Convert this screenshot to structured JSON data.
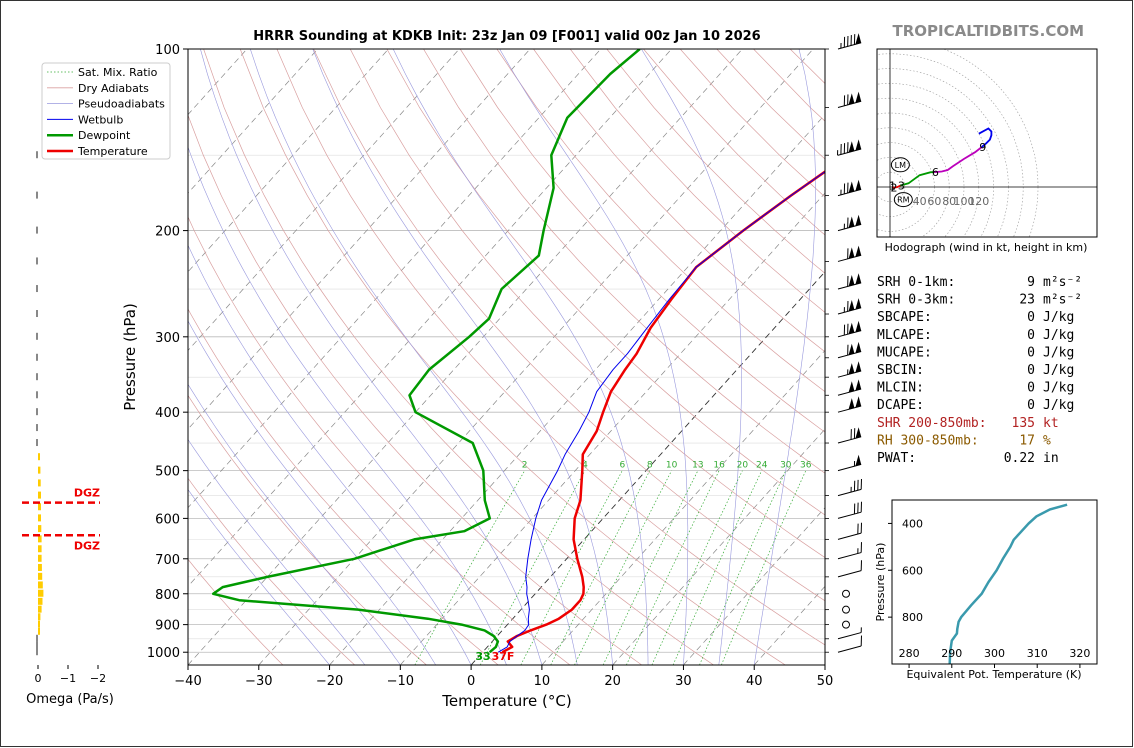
{
  "brand": "TROPICALTIDBITS.COM",
  "chart_data": [
    {
      "type": "line",
      "name": "skew-t",
      "title": "HRRR Sounding at KDKB Init: 23z Jan 09 [F001] valid 00z Jan 10 2026",
      "xlabel": "Temperature (°C)",
      "ylabel": "Pressure (hPa)",
      "xlim": [
        -40,
        50
      ],
      "ylim": [
        1050,
        100
      ],
      "y_scale": "log",
      "x_ticks": [
        -40,
        -30,
        -20,
        -10,
        0,
        10,
        20,
        30,
        40,
        50
      ],
      "y_ticks": [
        100,
        200,
        300,
        400,
        500,
        600,
        700,
        800,
        900,
        1000
      ],
      "legend": [
        "Sat. Mix. Ratio",
        "Dry Adiabats",
        "Pseudoadiabats",
        "Wetbulb",
        "Dewpoint",
        "Temperature"
      ],
      "legend_position": "top-left",
      "mixing_ratio_labels": [
        "2",
        "4",
        "6",
        "8",
        "10",
        "13",
        "16",
        "20",
        "24",
        "30",
        "36"
      ],
      "surface_dewpoint_label": "33",
      "surface_temp_label": "37F",
      "series": [
        {
          "name": "Temperature",
          "color": "#ee0000",
          "p": [
            1000,
            980,
            960,
            940,
            920,
            900,
            880,
            850,
            820,
            800,
            780,
            750,
            700,
            650,
            600,
            560,
            500,
            470,
            430,
            400,
            370,
            340,
            320,
            290,
            260,
            230,
            200,
            175,
            150,
            130,
            115,
            100
          ],
          "t": [
            2.8,
            3.5,
            2.2,
            2.8,
            4.0,
            5.5,
            6.5,
            7.2,
            7.2,
            6.8,
            6.0,
            4.5,
            1.5,
            -1.5,
            -4.0,
            -5.5,
            -9.0,
            -11.0,
            -12.0,
            -13.5,
            -15.0,
            -15.8,
            -16.2,
            -17.5,
            -18.2,
            -18.8,
            -16.8,
            -14.5,
            -11.5,
            -11.5,
            -11.0,
            -10.0
          ]
        },
        {
          "name": "Wetbulb",
          "color": "#0000ee",
          "p": [
            1000,
            980,
            960,
            940,
            920,
            900,
            880,
            850,
            820,
            800,
            780,
            750,
            700,
            650,
            600,
            560,
            500,
            470,
            430,
            400,
            370,
            340,
            320,
            290,
            260,
            230,
            200,
            175,
            150,
            130,
            115,
            100
          ],
          "t": [
            2.2,
            2.8,
            2.5,
            2.8,
            3.2,
            3.0,
            2.2,
            1.2,
            -0.2,
            -1.2,
            -2.0,
            -3.5,
            -5.5,
            -7.5,
            -9.5,
            -11.0,
            -12.5,
            -13.5,
            -14.5,
            -15.5,
            -17.0,
            -17.5,
            -17.5,
            -18.0,
            -18.5,
            -18.8,
            -16.8,
            -14.5,
            -11.5,
            -11.2,
            -11.2,
            -10.0
          ]
        },
        {
          "name": "Dewpoint",
          "color": "#009900",
          "p": [
            1000,
            980,
            960,
            940,
            920,
            900,
            880,
            850,
            820,
            800,
            780,
            750,
            700,
            650,
            630,
            600,
            560,
            500,
            450,
            400,
            375,
            340,
            300,
            280,
            250,
            220,
            200,
            170,
            150,
            130,
            110,
            100
          ],
          "t": [
            1.0,
            1.2,
            0.8,
            -0.5,
            -2.5,
            -6.5,
            -12.0,
            -23.0,
            -41.0,
            -45.5,
            -45.0,
            -40.0,
            -30.0,
            -24.0,
            -18.0,
            -16.0,
            -19.0,
            -23.0,
            -28.0,
            -40.0,
            -43.0,
            -43.5,
            -42.0,
            -41.5,
            -43.5,
            -42.5,
            -45.0,
            -49.0,
            -53.5,
            -56.0,
            -55.5,
            -54.5
          ]
        }
      ]
    },
    {
      "type": "line",
      "name": "hodograph",
      "xlabel": "Hodograph (wind in kt, height in km)",
      "x_ticks": [
        40,
        60,
        80,
        100,
        120
      ],
      "point_labels": [
        "1",
        "2",
        "3",
        "6",
        "9"
      ],
      "markers": [
        "LM",
        "RM"
      ],
      "series": [
        {
          "name": "0-3km",
          "color": "#ee0000",
          "u": [
            3,
            6,
            10,
            14
          ],
          "v": [
            0,
            -1,
            0,
            2
          ]
        },
        {
          "name": "3-6km",
          "color": "#009900",
          "u": [
            14,
            25,
            40,
            55,
            60
          ],
          "v": [
            2,
            5,
            16,
            20,
            20
          ]
        },
        {
          "name": "6-9km",
          "color": "#bb00bb",
          "u": [
            60,
            70,
            78,
            85,
            100,
            115,
            124
          ],
          "v": [
            20,
            21,
            23,
            28,
            38,
            47,
            54
          ]
        },
        {
          "name": "9km+",
          "color": "#0000ee",
          "u": [
            124,
            130,
            135,
            137,
            137,
            133,
            120
          ],
          "v": [
            54,
            59,
            64,
            70,
            75,
            79,
            72
          ]
        }
      ]
    },
    {
      "type": "line",
      "name": "theta-e",
      "xlabel": "Equivalent Pot. Temperature (K)",
      "ylabel": "Pressure (hPa)",
      "x_ticks": [
        280,
        290,
        300,
        310,
        320
      ],
      "y_ticks": [
        400,
        600,
        800
      ],
      "y_tick_extra_label": "",
      "series": [
        {
          "name": "Theta-E",
          "color": "#3a9aad",
          "p": [
            1000,
            950,
            900,
            870,
            850,
            820,
            800,
            750,
            700,
            650,
            600,
            550,
            500,
            470,
            440,
            400,
            370,
            340,
            320
          ],
          "theta_e": [
            289.5,
            289.6,
            290.0,
            291.2,
            291.3,
            291.6,
            292.2,
            294.5,
            297.0,
            298.6,
            300.5,
            302.0,
            303.7,
            304.5,
            306.0,
            308.0,
            309.8,
            313.0,
            317.0
          ]
        }
      ]
    },
    {
      "type": "bar",
      "name": "omega",
      "xlabel": "Omega (Pa/s)",
      "x_ticks": [
        "0",
        "−1",
        "−2"
      ],
      "dgz_label": "DGZ",
      "dgz_pressures": [
        565,
        640
      ],
      "p": [
        1000,
        975,
        950,
        925,
        900,
        875,
        850,
        825,
        800,
        775,
        750,
        725,
        700,
        675,
        650,
        625,
        600,
        575,
        550,
        525,
        500,
        475,
        450,
        425,
        400,
        375,
        350,
        325,
        300,
        275,
        250,
        225,
        200,
        175,
        150
      ],
      "values": [
        0.05,
        0.05,
        0.03,
        -0.03,
        -0.05,
        -0.08,
        -0.12,
        -0.15,
        -0.18,
        -0.16,
        -0.14,
        -0.13,
        -0.12,
        -0.12,
        -0.12,
        -0.11,
        -0.1,
        -0.1,
        -0.1,
        -0.09,
        -0.08,
        -0.05,
        0.01,
        0.03,
        0.02,
        0.03,
        0.03,
        0.05,
        0.04,
        0.05,
        0.06,
        0.04,
        0.03,
        0.01,
        0.01
      ]
    }
  ],
  "indices": [
    {
      "label": "SRH 0-1km:",
      "value": "9",
      "unit": "m²s⁻²",
      "color": "#000000"
    },
    {
      "label": "SRH 0-3km:",
      "value": "23",
      "unit": "m²s⁻²",
      "color": "#000000"
    },
    {
      "label": "SBCAPE:",
      "value": "0",
      "unit": "J/kg",
      "color": "#000000"
    },
    {
      "label": "MLCAPE:",
      "value": "0",
      "unit": "J/kg",
      "color": "#000000"
    },
    {
      "label": "MUCAPE:",
      "value": "0",
      "unit": "J/kg",
      "color": "#000000"
    },
    {
      "label": "SBCIN:",
      "value": "0",
      "unit": "J/kg",
      "color": "#000000"
    },
    {
      "label": "MLCIN:",
      "value": "0",
      "unit": "J/kg",
      "color": "#000000"
    },
    {
      "label": "DCAPE:",
      "value": "0",
      "unit": "J/kg",
      "color": "#000000"
    },
    {
      "label": "SHR 200-850mb:",
      "value": "135",
      "unit": "kt",
      "color": "#b22222"
    },
    {
      "label": "RH 300-850mb:",
      "value": "17",
      "unit": "%",
      "color": "#8b5a00"
    },
    {
      "label": "PWAT:",
      "value": "0.22",
      "unit": "in",
      "color": "#000000"
    }
  ]
}
